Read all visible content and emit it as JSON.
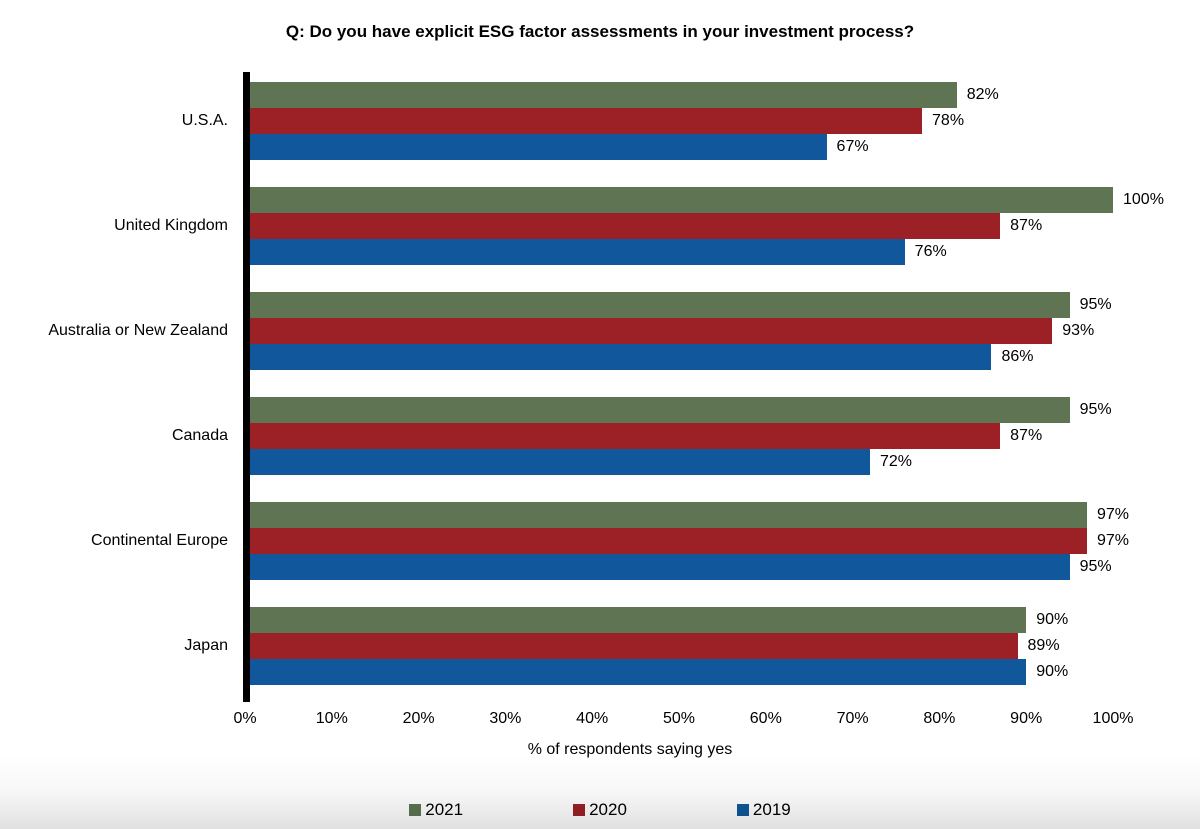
{
  "chart_data": {
    "type": "bar",
    "orientation": "horizontal",
    "title": "Q: Do you have explicit ESG factor assessments in your investment process?",
    "xlabel": "% of respondents saying yes",
    "categories": [
      "U.S.A.",
      "United Kingdom",
      "Australia or New Zealand",
      "Canada",
      "Continental Europe",
      "Japan"
    ],
    "series": [
      {
        "name": "2021",
        "color": "#5E7453",
        "values": [
          82,
          100,
          95,
          95,
          97,
          90
        ]
      },
      {
        "name": "2020",
        "color": "#9B2126",
        "values": [
          78,
          87,
          93,
          87,
          97,
          89
        ]
      },
      {
        "name": "2019",
        "color": "#10589B",
        "values": [
          67,
          76,
          86,
          72,
          95,
          90
        ]
      }
    ],
    "value_suffix": "%",
    "xlim": [
      0,
      100
    ],
    "xticks": [
      "0%",
      "10%",
      "20%",
      "30%",
      "40%",
      "50%",
      "60%",
      "70%",
      "80%",
      "90%",
      "100%"
    ],
    "grid": false,
    "legend_position": "bottom",
    "axis_color": "#000000",
    "background_color": "#ffffff"
  }
}
